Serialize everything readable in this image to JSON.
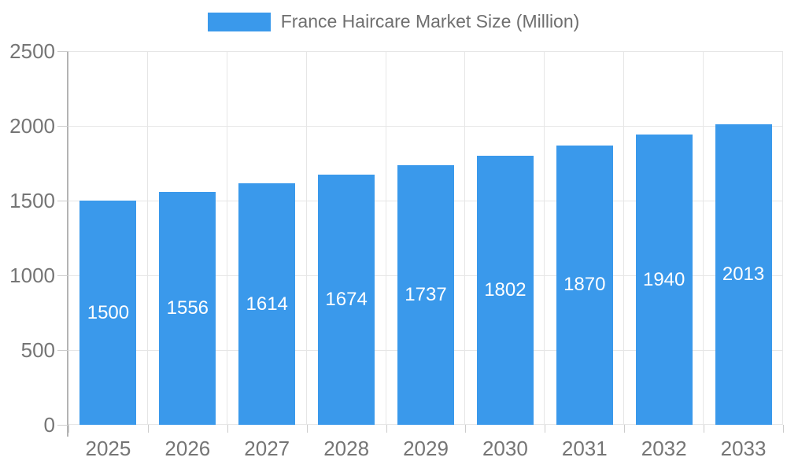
{
  "legend": {
    "label": "France Haircare Market Size (Million)"
  },
  "chart_data": {
    "type": "bar",
    "title": "France Haircare Market Size (Million)",
    "legend_position": "top",
    "grid": true,
    "categories": [
      "2025",
      "2026",
      "2027",
      "2028",
      "2029",
      "2030",
      "2031",
      "2032",
      "2033"
    ],
    "series": [
      {
        "name": "France Haircare Market Size (Million)",
        "values": [
          1500,
          1556,
          1614,
          1674,
          1737,
          1802,
          1870,
          1940,
          2013
        ]
      }
    ],
    "bar_value_labels": [
      "1500",
      "1556",
      "1614",
      "1674",
      "1737",
      "1802",
      "1870",
      "1940",
      "2013"
    ],
    "xlabel": "",
    "ylabel": "",
    "ylim": [
      0,
      2500
    ],
    "y_tick_step": 500,
    "y_tick_labels": [
      "0",
      "500",
      "1000",
      "1500",
      "2000",
      "2500"
    ]
  },
  "colors": {
    "bar": "#3a99eb",
    "bar_label_text": "#ffffff",
    "axis_text": "#757575",
    "legend_text": "#6f6f6f",
    "gridline": "#e6e6e6",
    "axis_line": "#b3b3b3",
    "tick_line": "#cccccc",
    "background": "#ffffff"
  }
}
